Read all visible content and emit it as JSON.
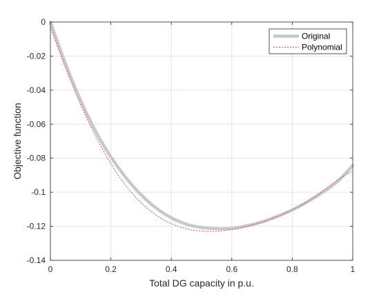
{
  "chart_data": {
    "type": "line",
    "xlabel": "Total DG capacity in p.u.",
    "ylabel": "Objective function",
    "xlim": [
      0,
      1
    ],
    "ylim": [
      -0.14,
      0
    ],
    "xticks": [
      0,
      0.2,
      0.4,
      0.6,
      0.8,
      1
    ],
    "xtick_labels": [
      "0",
      "0.2",
      "0.4",
      "0.6",
      "0.8",
      "1"
    ],
    "yticks": [
      0,
      -0.02,
      -0.04,
      -0.06,
      -0.08,
      -0.1,
      -0.12,
      -0.14
    ],
    "ytick_labels": [
      "0",
      "-0.02",
      "-0.04",
      "-0.06",
      "-0.08",
      "-0.1",
      "-0.12",
      "-0.14"
    ],
    "grid": true,
    "legend_position": "top-right",
    "series": [
      {
        "name": "Original",
        "color": "#c8c8c8",
        "style": "solid-thick",
        "x": [
          0,
          0.05,
          0.1,
          0.15,
          0.2,
          0.25,
          0.3,
          0.35,
          0.4,
          0.45,
          0.5,
          0.55,
          0.6,
          0.65,
          0.7,
          0.75,
          0.8,
          0.85,
          0.9,
          0.95,
          1.0
        ],
        "y": [
          0,
          -0.0245,
          -0.046,
          -0.0643,
          -0.0792,
          -0.0915,
          -0.1015,
          -0.1093,
          -0.115,
          -0.1188,
          -0.1207,
          -0.1214,
          -0.1212,
          -0.1197,
          -0.1174,
          -0.1142,
          -0.1104,
          -0.1057,
          -0.1001,
          -0.0936,
          -0.0843
        ]
      },
      {
        "name": "Polynomial",
        "color": "#d9454d",
        "style": "dotted",
        "x": [
          0,
          0.05,
          0.1,
          0.15,
          0.2,
          0.25,
          0.3,
          0.35,
          0.4,
          0.45,
          0.5,
          0.55,
          0.6,
          0.65,
          0.7,
          0.75,
          0.8,
          0.85,
          0.9,
          0.95,
          1.0
        ],
        "y": [
          -0.003,
          -0.0269,
          -0.0485,
          -0.0673,
          -0.0833,
          -0.0962,
          -0.1061,
          -0.1135,
          -0.1185,
          -0.1215,
          -0.1228,
          -0.1229,
          -0.1219,
          -0.1201,
          -0.1176,
          -0.1143,
          -0.1103,
          -0.1054,
          -0.0994,
          -0.0928,
          -0.0874
        ]
      }
    ]
  }
}
